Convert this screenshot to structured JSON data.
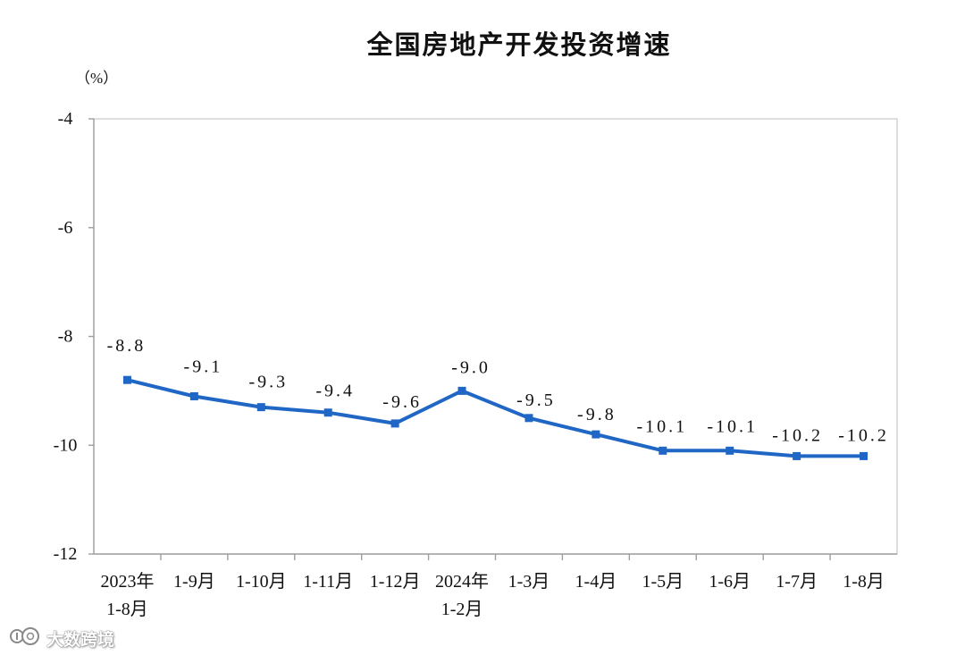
{
  "chart_data": {
    "type": "line",
    "title": "全国房地产开发投资增速",
    "ylabel": "（%）",
    "xlabel": "",
    "ylim": [
      -12,
      -4
    ],
    "yticks": [
      -4,
      -6,
      -8,
      -10,
      -12
    ],
    "ytick_labels": [
      "-4",
      "-6",
      "-8",
      "-10",
      "-12"
    ],
    "categories": [
      "2023年\n1-8月",
      "1-9月",
      "1-10月",
      "1-11月",
      "1-12月",
      "2024年\n1-2月",
      "1-3月",
      "1-4月",
      "1-5月",
      "1-6月",
      "1-7月",
      "1-8月"
    ],
    "series": [
      {
        "values": [
          -8.8,
          -9.1,
          -9.3,
          -9.4,
          -9.6,
          -9.0,
          -9.5,
          -9.8,
          -10.1,
          -10.1,
          -10.2,
          -10.2
        ],
        "color": "#1f66c5",
        "marker": "square"
      }
    ],
    "data_labels": [
      "-8.8",
      "-9.1",
      "-9.3",
      "-9.4",
      "-9.6",
      "-9.0",
      "-9.5",
      "-9.8",
      "-10.1",
      "-10.1",
      "-10.2",
      "-10.2"
    ],
    "grid": false,
    "legend": "none",
    "frame_color": "#c8c8c8",
    "axis_color": "#9e9e9e"
  },
  "watermark": {
    "logo_icon": "brand-logo-icon",
    "text": "大数跨境"
  }
}
